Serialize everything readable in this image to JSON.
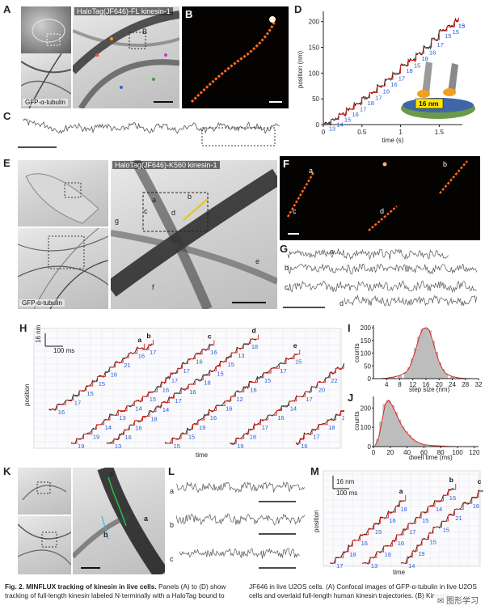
{
  "panels": {
    "A": {
      "letter": "A",
      "title": "HaloTag(JF646)-FL kinesin-1",
      "sub_letter": "B",
      "label_bottom": "GFP-α-tubulin"
    },
    "B": {
      "letter": "B"
    },
    "C": {
      "letter": "C"
    },
    "D": {
      "letter": "D",
      "ylabel": "position (nm)",
      "xlabel": "time (s)",
      "yticks": [
        "0",
        "50",
        "100",
        "150",
        "200"
      ],
      "xticks": [
        "0",
        "0.5",
        "1",
        "1.5"
      ],
      "step_labels": [
        "13",
        "14",
        "15",
        "16",
        "17",
        "18",
        "17",
        "16",
        "16",
        "17",
        "18",
        "15",
        "18",
        "16",
        "17",
        "15",
        "15",
        "13",
        "15"
      ],
      "inset_label": "16 nm"
    },
    "E": {
      "letter": "E",
      "title": "HaloTag(JF646)-K560 kinesin-1",
      "label_bottom": "GFP-α-tubulin",
      "tags": [
        "a",
        "b",
        "c",
        "d",
        "e",
        "f",
        "g"
      ]
    },
    "F": {
      "letter": "F",
      "tags": [
        "a",
        "b",
        "c",
        "d"
      ]
    },
    "G": {
      "letter": "G",
      "tags": [
        "a",
        "b",
        "c",
        "d"
      ]
    },
    "H": {
      "letter": "H",
      "scale_y": "16 nm",
      "scale_x": "100 ms",
      "ylabel": "position",
      "xlabel": "time",
      "trace_tags": [
        "a",
        "b",
        "c",
        "d",
        "e",
        "f",
        "g"
      ],
      "step_labels": [
        "16",
        "17",
        "15",
        "15",
        "16",
        "21",
        "16",
        "17",
        "19",
        "19",
        "14",
        "13",
        "14",
        "15",
        "16",
        "17",
        "17",
        "16",
        "16",
        "13",
        "16",
        "16",
        "18",
        "14",
        "17",
        "16",
        "18",
        "15",
        "15",
        "13",
        "18",
        "15",
        "15",
        "19",
        "16",
        "16",
        "12",
        "16",
        "15",
        "17",
        "15",
        "19",
        "16",
        "17",
        "16",
        "14",
        "17",
        "20",
        "22",
        "18",
        "18",
        "16",
        "17",
        "18",
        "15",
        "16",
        "15",
        "13",
        "17",
        "19",
        "18",
        "16",
        "17",
        "14",
        "15"
      ]
    },
    "I": {
      "letter": "I",
      "ylabel": "counts",
      "xlabel": "step size (nm)",
      "yticks": [
        "0",
        "50",
        "100",
        "150",
        "200"
      ],
      "xticks": [
        "4",
        "8",
        "12",
        "16",
        "20",
        "24",
        "28",
        "32"
      ]
    },
    "J": {
      "letter": "J",
      "ylabel": "counts",
      "xlabel": "dwell time (ms)",
      "yticks": [
        "0",
        "100",
        "200"
      ],
      "xticks": [
        "0",
        "20",
        "40",
        "60",
        "80",
        "100",
        "120"
      ]
    },
    "K": {
      "letter": "K",
      "tags": [
        "a",
        "b",
        "c"
      ]
    },
    "L": {
      "letter": "L",
      "tags": [
        "a",
        "b",
        "c"
      ]
    },
    "M": {
      "letter": "M",
      "scale_y": "16 nm",
      "scale_x": "100 ms",
      "ylabel": "position",
      "xlabel": "time",
      "trace_tags": [
        "a",
        "b",
        "c"
      ],
      "step_labels": [
        "17",
        "18",
        "16",
        "15",
        "16",
        "18",
        "13",
        "16",
        "16",
        "17",
        "15",
        "14",
        "16",
        "14",
        "19",
        "15",
        "15",
        "21",
        "16",
        "14",
        "16",
        "13",
        "16",
        "16",
        "17",
        "15",
        "16",
        "17"
      ]
    }
  },
  "caption": {
    "title": "Fig. 2. MINFLUX tracking of kinesin in live cells.",
    "left_rest": " Panels (A) to (D) show tracking of full-length kinesin labeled N-terminally with a HaloTag bound to",
    "right": "JF646 in live U2OS cells. (A) Confocal images of GFP-α-tubulin in live U2OS cells and overlaid full-length human kinesin trajectories. (B) Kinesin"
  },
  "watermark": "✉ 图形学习",
  "colors": {
    "trace": "#111111",
    "fit": "#d9261c",
    "step": "#2a5bd7",
    "hist_fill": "#bdbdbd"
  },
  "chart_data": [
    {
      "type": "line",
      "title": "D",
      "xlabel": "time (s)",
      "ylabel": "position (nm)",
      "xlim": [
        0,
        1.8
      ],
      "ylim": [
        0,
        220
      ],
      "x": [
        0.0,
        0.1,
        0.2,
        0.3,
        0.4,
        0.5,
        0.6,
        0.7,
        0.8,
        0.9,
        1.0,
        1.1,
        1.2,
        1.3,
        1.4,
        1.5,
        1.6,
        1.7,
        1.75
      ],
      "y": [
        2,
        10,
        20,
        30,
        40,
        52,
        62,
        75,
        88,
        100,
        115,
        125,
        138,
        150,
        165,
        182,
        190,
        202,
        208
      ]
    },
    {
      "type": "bar",
      "title": "I",
      "xlabel": "step size (nm)",
      "ylabel": "counts",
      "xlim": [
        0,
        32
      ],
      "ylim": [
        0,
        210
      ],
      "categories": [
        2,
        4,
        6,
        8,
        10,
        11,
        12,
        13,
        14,
        15,
        16,
        17,
        18,
        19,
        20,
        21,
        22,
        24,
        26,
        28,
        30
      ],
      "values": [
        0,
        2,
        6,
        12,
        25,
        45,
        80,
        120,
        165,
        195,
        200,
        190,
        150,
        105,
        65,
        38,
        20,
        8,
        3,
        1,
        0
      ]
    },
    {
      "type": "bar",
      "title": "J",
      "xlabel": "dwell time (ms)",
      "ylabel": "counts",
      "xlim": [
        0,
        125
      ],
      "ylim": [
        0,
        260
      ],
      "categories": [
        2,
        6,
        10,
        14,
        18,
        22,
        26,
        30,
        34,
        38,
        42,
        46,
        50,
        55,
        60,
        70,
        80,
        90,
        100
      ],
      "values": [
        5,
        40,
        130,
        220,
        240,
        215,
        180,
        140,
        105,
        80,
        60,
        42,
        28,
        18,
        10,
        5,
        3,
        1,
        0
      ]
    }
  ]
}
